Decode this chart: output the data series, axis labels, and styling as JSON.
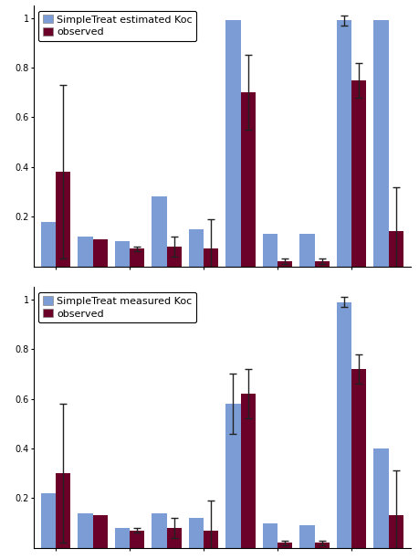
{
  "panel1": {
    "legend_label": "SimpleTreat estimated Koc",
    "bar_blue": [
      0.18,
      0.12,
      0.1,
      0.28,
      0.15,
      0.99,
      0.13,
      0.13,
      0.99,
      0.99
    ],
    "bar_red": [
      0.38,
      0.11,
      0.07,
      0.08,
      0.07,
      0.7,
      0.02,
      0.02,
      0.75,
      0.14
    ],
    "err_blue": [
      0.0,
      0.0,
      0.0,
      0.0,
      0.0,
      0.0,
      0.0,
      0.0,
      0.02,
      0.0
    ],
    "err_red": [
      0.35,
      0.0,
      0.01,
      0.04,
      0.12,
      0.15,
      0.01,
      0.01,
      0.07,
      0.18
    ]
  },
  "panel2": {
    "legend_label": "SimpleTreat measured Koc",
    "bar_blue": [
      0.22,
      0.14,
      0.08,
      0.14,
      0.12,
      0.58,
      0.1,
      0.09,
      0.99,
      0.4
    ],
    "bar_red": [
      0.3,
      0.13,
      0.07,
      0.08,
      0.07,
      0.62,
      0.02,
      0.02,
      0.72,
      0.13
    ],
    "err_blue": [
      0.0,
      0.0,
      0.0,
      0.0,
      0.0,
      0.12,
      0.0,
      0.0,
      0.02,
      0.0
    ],
    "err_red": [
      0.28,
      0.0,
      0.01,
      0.04,
      0.12,
      0.1,
      0.01,
      0.01,
      0.06,
      0.18
    ]
  },
  "ylim": [
    0,
    1.05
  ],
  "n_groups": 10,
  "bar_width": 0.4,
  "color_blue": "#7B9CD4",
  "color_red": "#6B0028",
  "background": "#FFFFFF",
  "ecolor": "#222222",
  "yticks": [
    0.2,
    0.4,
    0.6,
    0.8,
    1.0
  ],
  "ytick_labels": [
    "0.2",
    "0.4",
    "0.6",
    "0.8",
    "1"
  ]
}
